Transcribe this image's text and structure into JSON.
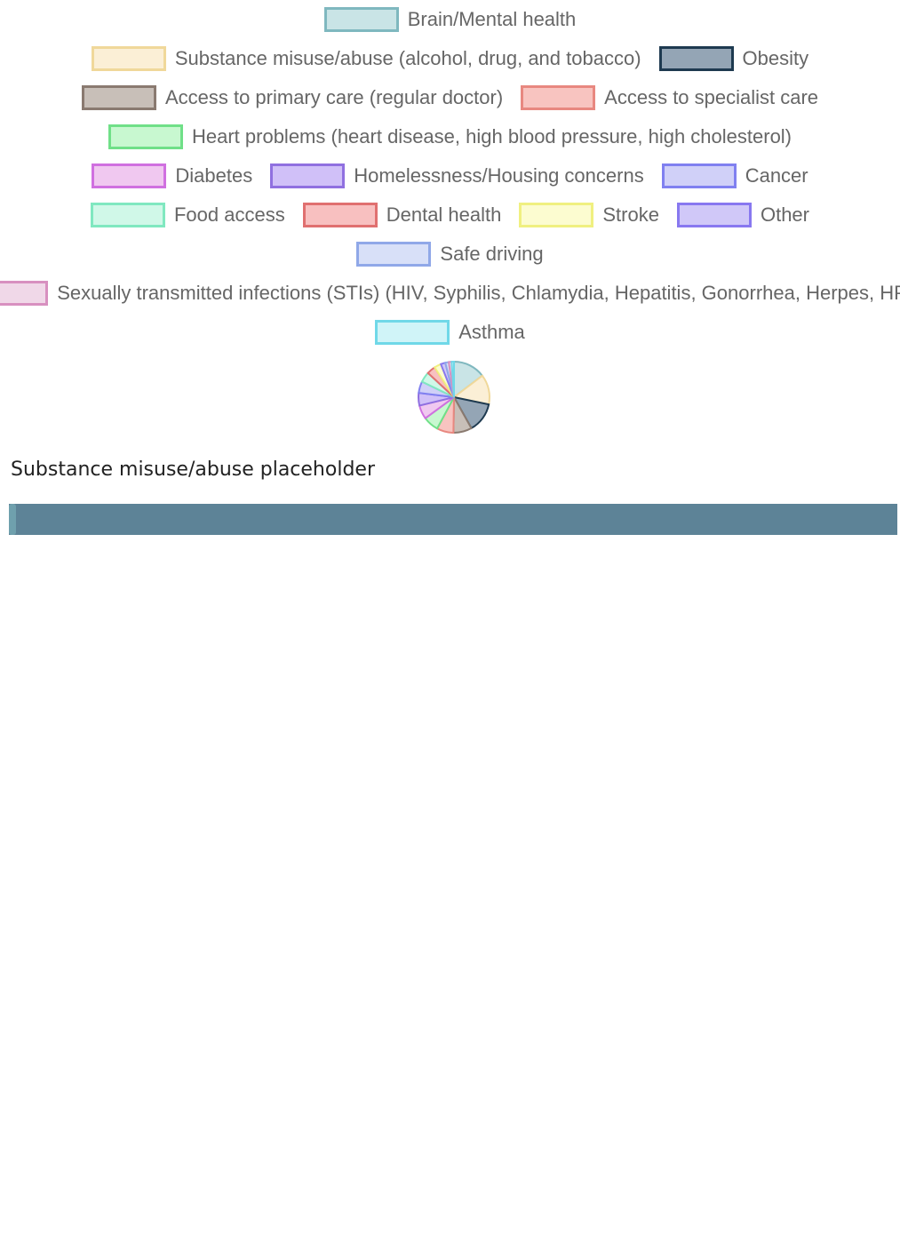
{
  "legend": [
    {
      "name": "Brain/Mental health",
      "fill": "#c9e4e6",
      "border": "#7fb8bf"
    },
    {
      "name": "Substance misuse/abuse (alcohol, drug, and tobacco)",
      "fill": "#fbefd6",
      "border": "#f0d89a"
    },
    {
      "name": "Obesity",
      "fill": "#94a5b5",
      "border": "#1e3a50"
    },
    {
      "name": "Access to primary care (regular doctor)",
      "fill": "#c8bfb8",
      "border": "#8a7a70"
    },
    {
      "name": "Access to specialist care",
      "fill": "#f8c4c0",
      "border": "#e88880"
    },
    {
      "name": "Heart problems (heart disease, high blood pressure, high cholesterol)",
      "fill": "#c8f8d0",
      "border": "#70e088"
    },
    {
      "name": "Diabetes",
      "fill": "#f0c8f0",
      "border": "#d070e0"
    },
    {
      "name": "Homelessness/Housing concerns",
      "fill": "#d0c0f8",
      "border": "#9070e0"
    },
    {
      "name": "Cancer",
      "fill": "#d0d0f8",
      "border": "#8080f0"
    },
    {
      "name": "Food access",
      "fill": "#d0f8e8",
      "border": "#80e8c0"
    },
    {
      "name": "Dental health",
      "fill": "#f8c0c0",
      "border": "#e07070"
    },
    {
      "name": "Stroke",
      "fill": "#fcfcd0",
      "border": "#f0f080"
    },
    {
      "name": "Other",
      "fill": "#d0c8f8",
      "border": "#8878f0"
    },
    {
      "name": "Safe driving",
      "fill": "#d8e0f8",
      "border": "#90a8e8"
    },
    {
      "name": "Sexually transmitted infections (STIs) (HIV, Syphilis, Chlamydia, Hepatitis, Gonorrhea, Herpes, HPV)",
      "fill": "#f0d8e8",
      "border": "#d890c0"
    },
    {
      "name": "Asthma",
      "fill": "#d0f4f8",
      "border": "#70d8e8"
    }
  ],
  "pie_values": [
    56,
    52,
    52,
    32,
    29,
    27,
    24,
    22,
    20,
    18,
    15,
    12,
    8,
    6,
    5,
    4
  ],
  "results": [
    {
      "label": "Substance misuse/abuse placeholder",
      "value": 0,
      "value_label": ""
    }
  ]
}
